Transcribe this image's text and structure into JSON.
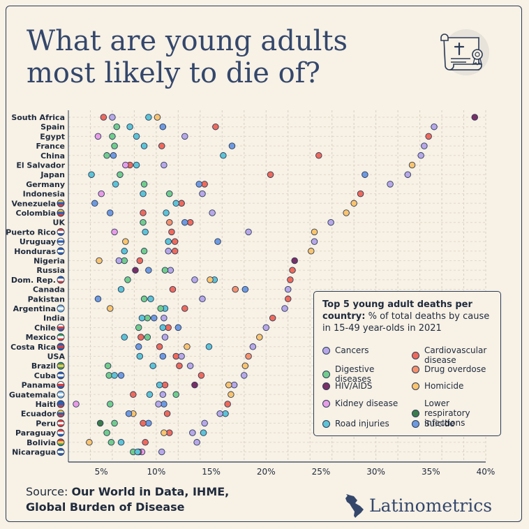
{
  "title_lines": [
    "What are young adults",
    "most likely to die of?"
  ],
  "legend": {
    "title_bold": "Top 5 young adult deaths per country:",
    "title_rest": " % of total deaths by cause in 15-49 year-olds in 2021"
  },
  "source": {
    "label": "Source: ",
    "text_line1": "Our World in Data, IHME,",
    "text_line2": "Global Burden of Disease"
  },
  "brand": {
    "name": "Latinometrics",
    "logo_icon": "latin-america-map-icon"
  },
  "colors": {
    "Cancers": "#b8a8e8",
    "Cardiovascular disease": "#ee6a5c",
    "Digestive diseases": "#72cc8d",
    "Drug overdose": "#f5916c",
    "HIV/AIDS": "#7a2f66",
    "Homicide": "#fbc46d",
    "Kidney disease": "#e79ce6",
    "Lower respiratory infections": "#3c7c4c",
    "Road injuries": "#5ec3d6",
    "Suicide": "#6f9ae0"
  },
  "chart_data": {
    "type": "scatter",
    "xlim": [
      2,
      40
    ],
    "x_ticks": [
      "5%",
      "10%",
      "15%",
      "20%",
      "25%",
      "30%",
      "35%",
      "40%"
    ],
    "x_tick_values": [
      5,
      10,
      15,
      20,
      25,
      30,
      35,
      40
    ],
    "grid": true,
    "legend_placement": "bottom-right",
    "legend_entries": [
      "Cancers",
      "Cardiovascular disease",
      "Digestive diseases",
      "Drug overdose",
      "HIV/AIDS",
      "Homicide",
      "Kidney disease",
      "Lower respiratory infections",
      "Road injuries",
      "Suicide"
    ],
    "countries": [
      {
        "name": "South Africa",
        "flag": false,
        "points": [
          [
            "HIV/AIDS",
            39.0
          ],
          [
            "Homicide",
            10.1
          ],
          [
            "Road injuries",
            9.3
          ],
          [
            "Cancers",
            6.0
          ],
          [
            "Cardiovascular disease",
            5.2
          ]
        ]
      },
      {
        "name": "Spain",
        "flag": false,
        "points": [
          [
            "Cancers",
            35.3
          ],
          [
            "Cardiovascular disease",
            15.4
          ],
          [
            "Suicide",
            10.6
          ],
          [
            "Road injuries",
            7.6
          ],
          [
            "Digestive diseases",
            6.4
          ]
        ]
      },
      {
        "name": "Egypt",
        "flag": false,
        "points": [
          [
            "Cardiovascular disease",
            34.8
          ],
          [
            "Cancers",
            12.6
          ],
          [
            "Road injuries",
            8.2
          ],
          [
            "Digestive diseases",
            6.0
          ],
          [
            "Kidney disease",
            4.7
          ]
        ]
      },
      {
        "name": "France",
        "flag": false,
        "points": [
          [
            "Cancers",
            34.4
          ],
          [
            "Suicide",
            16.9
          ],
          [
            "Road injuries",
            8.9
          ],
          [
            "Cardiovascular disease",
            10.5
          ],
          [
            "Digestive diseases",
            6.2
          ]
        ]
      },
      {
        "name": "China",
        "flag": false,
        "points": [
          [
            "Cancers",
            34.1
          ],
          [
            "Cardiovascular disease",
            24.8
          ],
          [
            "Road injuries",
            16.1
          ],
          [
            "Suicide",
            6.1
          ],
          [
            "Digestive diseases",
            5.5
          ]
        ]
      },
      {
        "name": "El Salvador",
        "flag": false,
        "points": [
          [
            "Homicide",
            33.3
          ],
          [
            "Cancers",
            10.7
          ],
          [
            "Road injuries",
            8.2
          ],
          [
            "Cardiovascular disease",
            7.6
          ],
          [
            "Kidney disease",
            7.2
          ]
        ]
      },
      {
        "name": "Japan",
        "flag": false,
        "points": [
          [
            "Cancers",
            32.9
          ],
          [
            "Suicide",
            29.0
          ],
          [
            "Cardiovascular disease",
            20.4
          ],
          [
            "Digestive diseases",
            6.7
          ],
          [
            "Road injuries",
            4.1
          ]
        ]
      },
      {
        "name": "Germany",
        "flag": false,
        "points": [
          [
            "Cancers",
            31.3
          ],
          [
            "Cardiovascular disease",
            14.4
          ],
          [
            "Suicide",
            13.9
          ],
          [
            "Digestive diseases",
            8.9
          ],
          [
            "Road injuries",
            6.3
          ]
        ]
      },
      {
        "name": "Indonesia",
        "flag": false,
        "points": [
          [
            "Cardiovascular disease",
            28.6
          ],
          [
            "Cancers",
            14.2
          ],
          [
            "Digestive diseases",
            11.2
          ],
          [
            "Road injuries",
            8.8
          ],
          [
            "Kidney disease",
            5.0
          ]
        ]
      },
      {
        "name": "Venezuela",
        "flag": true,
        "flag_colors": [
          "#f2c94c",
          "#2f5fb3",
          "#d94040"
        ],
        "points": [
          [
            "Homicide",
            28.0
          ],
          [
            "Cancers",
            12.3
          ],
          [
            "Cardiovascular disease",
            12.3
          ],
          [
            "Road injuries",
            11.8
          ],
          [
            "Suicide",
            4.4
          ]
        ]
      },
      {
        "name": "Colombia",
        "flag": true,
        "flag_colors": [
          "#f2c94c",
          "#2f5fb3",
          "#d94040"
        ],
        "points": [
          [
            "Homicide",
            27.3
          ],
          [
            "Cancers",
            15.1
          ],
          [
            "Road injuries",
            10.9
          ],
          [
            "Cardiovascular disease",
            8.8
          ],
          [
            "Suicide",
            5.8
          ]
        ]
      },
      {
        "name": "UK",
        "flag": false,
        "points": [
          [
            "Cancers",
            25.9
          ],
          [
            "Cardiovascular disease",
            13.1
          ],
          [
            "Suicide",
            12.6
          ],
          [
            "Drug overdose",
            11.2
          ],
          [
            "Digestive diseases",
            8.8
          ]
        ]
      },
      {
        "name": "Puerto Rico",
        "flag": true,
        "flag_colors": [
          "#d94040",
          "#ffffff",
          "#2f5fb3"
        ],
        "points": [
          [
            "Homicide",
            24.4
          ],
          [
            "Cancers",
            18.4
          ],
          [
            "Cardiovascular disease",
            11.4
          ],
          [
            "Road injuries",
            9.0
          ],
          [
            "Kidney disease",
            6.2
          ]
        ]
      },
      {
        "name": "Uruguay",
        "flag": true,
        "flag_colors": [
          "#ffffff",
          "#2f5fb3",
          "#ffffff"
        ],
        "points": [
          [
            "Cancers",
            24.4
          ],
          [
            "Suicide",
            15.6
          ],
          [
            "Cardiovascular disease",
            11.7
          ],
          [
            "Road injuries",
            11.1
          ],
          [
            "Homicide",
            7.2
          ]
        ]
      },
      {
        "name": "Honduras",
        "flag": true,
        "flag_colors": [
          "#2f5fb3",
          "#ffffff",
          "#2f5fb3"
        ],
        "points": [
          [
            "Homicide",
            24.1
          ],
          [
            "Cardiovascular disease",
            11.7
          ],
          [
            "Cancers",
            11.1
          ],
          [
            "Digestive diseases",
            8.9
          ],
          [
            "Road injuries",
            7.1
          ]
        ]
      },
      {
        "name": "Nigeria",
        "flag": false,
        "points": [
          [
            "HIV/AIDS",
            22.6
          ],
          [
            "Cardiovascular disease",
            8.5
          ],
          [
            "Digestive diseases",
            7.1
          ],
          [
            "Cancers",
            6.6
          ],
          [
            "Homicide",
            4.8
          ]
        ]
      },
      {
        "name": "Russia",
        "flag": false,
        "points": [
          [
            "Cardiovascular disease",
            22.4
          ],
          [
            "Cancers",
            11.3
          ],
          [
            "Digestive diseases",
            10.8
          ],
          [
            "Suicide",
            9.3
          ],
          [
            "HIV/AIDS",
            8.1
          ]
        ]
      },
      {
        "name": "Dom. Rep.",
        "flag": true,
        "flag_colors": [
          "#2f5fb3",
          "#ffffff",
          "#d94040"
        ],
        "points": [
          [
            "Cardiovascular disease",
            22.2
          ],
          [
            "Road injuries",
            15.3
          ],
          [
            "Homicide",
            14.9
          ],
          [
            "Cancers",
            13.5
          ],
          [
            "Digestive diseases",
            7.4
          ]
        ]
      },
      {
        "name": "Canada",
        "flag": false,
        "points": [
          [
            "Cancers",
            22.0
          ],
          [
            "Suicide",
            18.1
          ],
          [
            "Drug overdose",
            17.2
          ],
          [
            "Cardiovascular disease",
            11.5
          ],
          [
            "Road injuries",
            6.8
          ]
        ]
      },
      {
        "name": "Pakistan",
        "flag": false,
        "points": [
          [
            "Cardiovascular disease",
            22.0
          ],
          [
            "Cancers",
            14.2
          ],
          [
            "Road injuries",
            9.5
          ],
          [
            "Digestive diseases",
            8.9
          ],
          [
            "Suicide",
            4.7
          ]
        ]
      },
      {
        "name": "Argentina",
        "flag": true,
        "flag_colors": [
          "#7fb8e6",
          "#ffffff",
          "#7fb8e6"
        ],
        "points": [
          [
            "Cancers",
            21.7
          ],
          [
            "Cardiovascular disease",
            12.6
          ],
          [
            "Road injuries",
            10.8
          ],
          [
            "Digestive diseases",
            10.4
          ],
          [
            "Homicide",
            5.8
          ]
        ]
      },
      {
        "name": "India",
        "flag": false,
        "points": [
          [
            "Cardiovascular disease",
            20.6
          ],
          [
            "Cancers",
            10.7
          ],
          [
            "Suicide",
            9.8
          ],
          [
            "Digestive diseases",
            9.2
          ],
          [
            "Road injuries",
            8.7
          ]
        ]
      },
      {
        "name": "Chile",
        "flag": true,
        "flag_colors": [
          "#ffffff",
          "#d94040",
          "#2f5fb3"
        ],
        "points": [
          [
            "Cancers",
            20.0
          ],
          [
            "Suicide",
            12.0
          ],
          [
            "Cardiovascular disease",
            11.1
          ],
          [
            "Road injuries",
            10.6
          ],
          [
            "Digestive diseases",
            8.4
          ]
        ]
      },
      {
        "name": "Mexico",
        "flag": true,
        "flag_colors": [
          "#3c9a5f",
          "#ffffff",
          "#d94040"
        ],
        "points": [
          [
            "Homicide",
            19.4
          ],
          [
            "Cancers",
            10.8
          ],
          [
            "Digestive diseases",
            9.2
          ],
          [
            "Cardiovascular disease",
            8.6
          ],
          [
            "Road injuries",
            7.1
          ]
        ]
      },
      {
        "name": "Costa Rica",
        "flag": true,
        "flag_colors": [
          "#2f5fb3",
          "#d94040",
          "#2f5fb3"
        ],
        "points": [
          [
            "Cancers",
            18.8
          ],
          [
            "Road injuries",
            14.8
          ],
          [
            "Homicide",
            12.8
          ],
          [
            "Cardiovascular disease",
            10.3
          ],
          [
            "Suicide",
            8.4
          ]
        ]
      },
      {
        "name": "USA",
        "flag": false,
        "points": [
          [
            "Drug overdose",
            18.4
          ],
          [
            "Cardiovascular disease",
            11.8
          ],
          [
            "Cancers",
            12.3
          ],
          [
            "Suicide",
            10.6
          ],
          [
            "Road injuries",
            8.5
          ]
        ]
      },
      {
        "name": "Brazil",
        "flag": true,
        "flag_colors": [
          "#3c9a5f",
          "#f2c94c",
          "#3c9a5f"
        ],
        "points": [
          [
            "Homicide",
            18.1
          ],
          [
            "Cancers",
            13.1
          ],
          [
            "Cardiovascular disease",
            12.1
          ],
          [
            "Road injuries",
            9.7
          ],
          [
            "Digestive diseases",
            5.6
          ]
        ]
      },
      {
        "name": "Cuba",
        "flag": true,
        "flag_colors": [
          "#2f5fb3",
          "#ffffff",
          "#2f5fb3"
        ],
        "points": [
          [
            "Cancers",
            18.0
          ],
          [
            "Cardiovascular disease",
            14.1
          ],
          [
            "Suicide",
            6.8
          ],
          [
            "Digestive diseases",
            5.7
          ],
          [
            "Road injuries",
            6.2
          ]
        ]
      },
      {
        "name": "Panama",
        "flag": true,
        "flag_colors": [
          "#ffffff",
          "#d94040",
          "#2f5fb3"
        ],
        "points": [
          [
            "Cancers",
            17.1
          ],
          [
            "Homicide",
            16.6
          ],
          [
            "HIV/AIDS",
            13.5
          ],
          [
            "Cardiovascular disease",
            10.8
          ],
          [
            "Road injuries",
            10.3
          ]
        ]
      },
      {
        "name": "Guatemala",
        "flag": true,
        "flag_colors": [
          "#7fb8e6",
          "#ffffff",
          "#7fb8e6"
        ],
        "points": [
          [
            "Homicide",
            16.8
          ],
          [
            "Digestive diseases",
            11.8
          ],
          [
            "Cancers",
            10.6
          ],
          [
            "Road injuries",
            9.4
          ],
          [
            "Cardiovascular disease",
            7.9
          ]
        ]
      },
      {
        "name": "Haiti",
        "flag": true,
        "flag_colors": [
          "#2f5fb3",
          "#2f5fb3",
          "#d94040"
        ],
        "points": [
          [
            "Cardiovascular disease",
            16.5
          ],
          [
            "Suicide",
            10.7
          ],
          [
            "Cancers",
            10.2
          ],
          [
            "Digestive diseases",
            5.8
          ],
          [
            "Kidney disease",
            2.7
          ]
        ]
      },
      {
        "name": "Ecuador",
        "flag": true,
        "flag_colors": [
          "#f2c94c",
          "#2f5fb3",
          "#d94040"
        ],
        "points": [
          [
            "Road injuries",
            16.3
          ],
          [
            "Cancers",
            15.8
          ],
          [
            "Cardiovascular disease",
            11.0
          ],
          [
            "Homicide",
            7.9
          ],
          [
            "Suicide",
            7.5
          ]
        ]
      },
      {
        "name": "Peru",
        "flag": true,
        "flag_colors": [
          "#d94040",
          "#ffffff",
          "#d94040"
        ],
        "points": [
          [
            "Cancers",
            14.4
          ],
          [
            "Suicide",
            9.3
          ],
          [
            "Cardiovascular disease",
            8.8
          ],
          [
            "Digestive diseases",
            6.2
          ],
          [
            "Lower respiratory infections",
            4.9
          ]
        ]
      },
      {
        "name": "Paraguay",
        "flag": true,
        "flag_colors": [
          "#d94040",
          "#ffffff",
          "#2f5fb3"
        ],
        "points": [
          [
            "Road injuries",
            14.3
          ],
          [
            "Cancers",
            13.3
          ],
          [
            "Cardiovascular disease",
            11.2
          ],
          [
            "Homicide",
            10.7
          ],
          [
            "Digestive diseases",
            5.5
          ]
        ]
      },
      {
        "name": "Bolivia",
        "flag": true,
        "flag_colors": [
          "#d94040",
          "#f2c94c",
          "#3c9a5f"
        ],
        "points": [
          [
            "Cancers",
            13.7
          ],
          [
            "Cardiovascular disease",
            9.0
          ],
          [
            "Road injuries",
            6.8
          ],
          [
            "Digestive diseases",
            5.9
          ],
          [
            "Homicide",
            3.9
          ]
        ]
      },
      {
        "name": "Nicaragua",
        "flag": true,
        "flag_colors": [
          "#2f5fb3",
          "#ffffff",
          "#2f5fb3"
        ],
        "points": [
          [
            "Cancers",
            10.5
          ],
          [
            "Kidney disease",
            8.7
          ],
          [
            "Digestive diseases",
            7.9
          ],
          [
            "Cardiovascular disease",
            8.4
          ],
          [
            "Road injuries",
            8.3
          ]
        ]
      }
    ]
  }
}
